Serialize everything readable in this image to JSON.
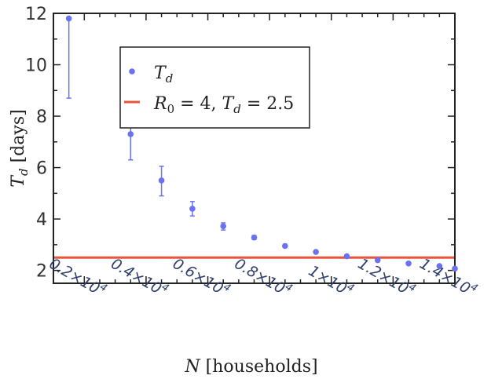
{
  "chart_data": {
    "type": "scatter",
    "xlabel": "N [households]",
    "ylabel": "T_d [days]",
    "xlim": [
      1000,
      14000
    ],
    "ylim": [
      1.5,
      12
    ],
    "x_ticks": [
      {
        "value": 2000,
        "label_mantissa": "0.2",
        "label_times": "×10",
        "label_exp": "4"
      },
      {
        "value": 4000,
        "label_mantissa": "0.4",
        "label_times": "×10",
        "label_exp": "4"
      },
      {
        "value": 6000,
        "label_mantissa": "0.6",
        "label_times": "×10",
        "label_exp": "4"
      },
      {
        "value": 8000,
        "label_mantissa": "0.8",
        "label_times": "×10",
        "label_exp": "4"
      },
      {
        "value": 10000,
        "label_mantissa": "1",
        "label_times": "×10",
        "label_exp": "4"
      },
      {
        "value": 12000,
        "label_mantissa": "1.2",
        "label_times": "×10",
        "label_exp": "4"
      },
      {
        "value": 14000,
        "label_mantissa": "1.4",
        "label_times": "×10",
        "label_exp": "4"
      }
    ],
    "y_ticks": [
      {
        "value": 2,
        "label": "2"
      },
      {
        "value": 4,
        "label": "4"
      },
      {
        "value": 6,
        "label": "6"
      },
      {
        "value": 8,
        "label": "8"
      },
      {
        "value": 10,
        "label": "10"
      },
      {
        "value": 12,
        "label": "12"
      }
    ],
    "series": [
      {
        "name": "T_d",
        "color": "#6a72f0",
        "points": [
          {
            "x": 1500,
            "y": 11.8,
            "err_low": 8.7,
            "err_high": 11.8
          },
          {
            "x": 3500,
            "y": 7.3,
            "err_low": 6.3,
            "err_high": 8.3
          },
          {
            "x": 4500,
            "y": 5.5,
            "err_low": 4.9,
            "err_high": 6.05
          },
          {
            "x": 5500,
            "y": 4.4,
            "err_low": 4.12,
            "err_high": 4.68
          },
          {
            "x": 6500,
            "y": 3.72,
            "err_low": 3.57,
            "err_high": 3.85
          },
          {
            "x": 7500,
            "y": 3.28,
            "err_low": 3.2,
            "err_high": 3.36
          },
          {
            "x": 8500,
            "y": 2.95,
            "err_low": 2.9,
            "err_high": 3.0
          },
          {
            "x": 9500,
            "y": 2.72,
            "err_low": 2.68,
            "err_high": 2.76
          },
          {
            "x": 10500,
            "y": 2.55,
            "err_low": 2.52,
            "err_high": 2.58
          },
          {
            "x": 11500,
            "y": 2.4,
            "err_low": 2.37,
            "err_high": 2.43
          },
          {
            "x": 12500,
            "y": 2.27,
            "err_low": 2.25,
            "err_high": 2.29
          },
          {
            "x": 13500,
            "y": 2.17,
            "err_low": 2.15,
            "err_high": 2.19
          },
          {
            "x": 14000,
            "y": 2.07,
            "err_low": 2.05,
            "err_high": 2.09
          }
        ]
      }
    ],
    "reference_line": {
      "name": "R_0 = 4, T_d = 2.5",
      "y": 2.5,
      "color": "#e8553d"
    },
    "legend": {
      "placement": "upper-center",
      "entries": [
        {
          "symbol": "T",
          "subscript": "d"
        },
        {
          "line1_symbol": "R",
          "line1_sub": "0",
          "line1_rest": " = 4, ",
          "line2_symbol": "T",
          "line2_sub": "d",
          "line2_rest": " = 2.5"
        }
      ]
    },
    "axis_titles": {
      "x_symbol": "N",
      "x_rest": " [households]",
      "y_symbol": "T",
      "y_sub": "d",
      "y_rest": " [days]"
    }
  }
}
